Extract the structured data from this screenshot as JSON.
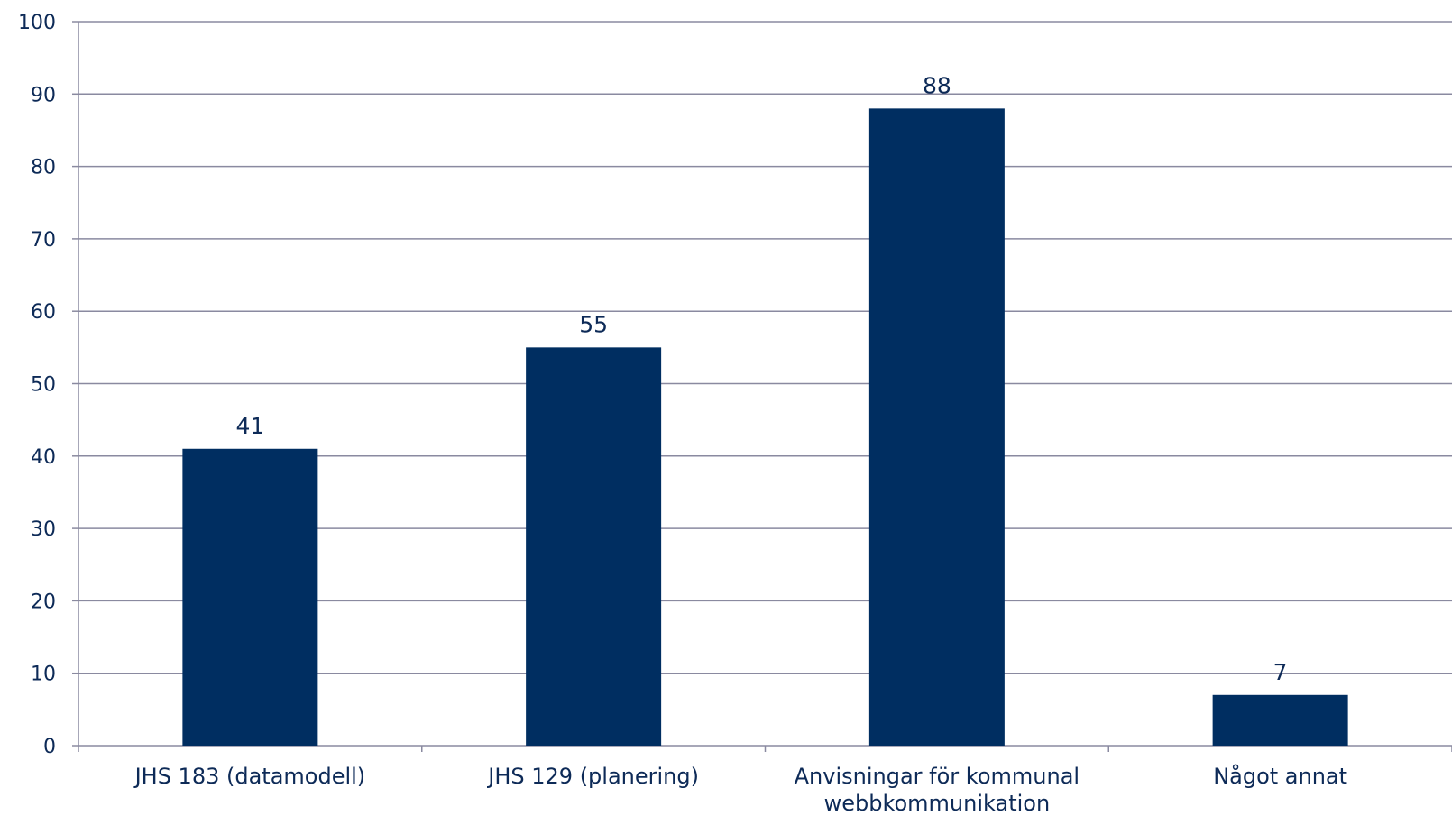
{
  "chart_data": {
    "type": "bar",
    "categories": [
      [
        "JHS 183 (datamodell)"
      ],
      [
        "JHS 129 (planering)"
      ],
      [
        "Anvisningar för kommunal",
        "webbkommunikation"
      ],
      [
        "Något annat"
      ]
    ],
    "values": [
      41,
      55,
      88,
      7
    ],
    "data_labels": [
      "41",
      "55",
      "88",
      "7"
    ],
    "yticks": [
      0,
      10,
      20,
      30,
      40,
      50,
      60,
      70,
      80,
      90,
      100
    ],
    "ylim": [
      0,
      100
    ],
    "title": "",
    "xlabel": "",
    "ylabel": "",
    "grid": true,
    "legend": "none",
    "colors": {
      "bar": "#002e61",
      "grid": "#8a8aa0",
      "axis": "#8a8aa0",
      "text": "#0d2a57"
    }
  }
}
